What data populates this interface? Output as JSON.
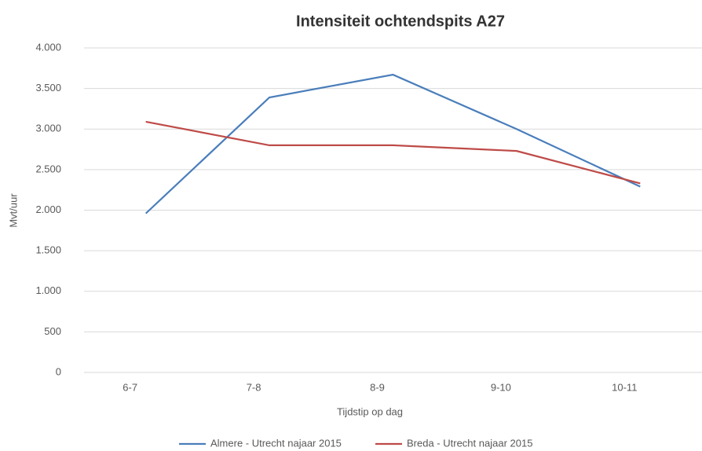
{
  "chart_data": {
    "type": "line",
    "title": "Intensiteit ochtendspits A27",
    "x_label": "Tijdstip op dag",
    "y_label": "Mvt/uur",
    "categories": [
      "6-7",
      "7-8",
      "8-9",
      "9-10",
      "10-11"
    ],
    "series": [
      {
        "name": "Almere - Utrecht najaar 2015",
        "color": "#4a7ebb",
        "values": [
          1960,
          3390,
          3670,
          3000,
          2290
        ]
      },
      {
        "name": "Breda - Utrecht najaar 2015",
        "color": "#be4b48",
        "values": [
          3090,
          2800,
          2800,
          2730,
          2330
        ]
      }
    ],
    "ylim": [
      0,
      4000
    ],
    "yticks": [
      0,
      500,
      {
        "value": 1000,
        "label": "1.000"
      },
      {
        "value": 1500,
        "label": "1.500"
      },
      {
        "value": 2000,
        "label": "2.000"
      },
      {
        "value": 2500,
        "label": "2.500"
      },
      {
        "value": 3000,
        "label": "3.000"
      },
      {
        "value": 3500,
        "label": "3.500"
      },
      {
        "value": 4000,
        "label": "4.000"
      }
    ],
    "grid": true,
    "legend": "bottom"
  }
}
